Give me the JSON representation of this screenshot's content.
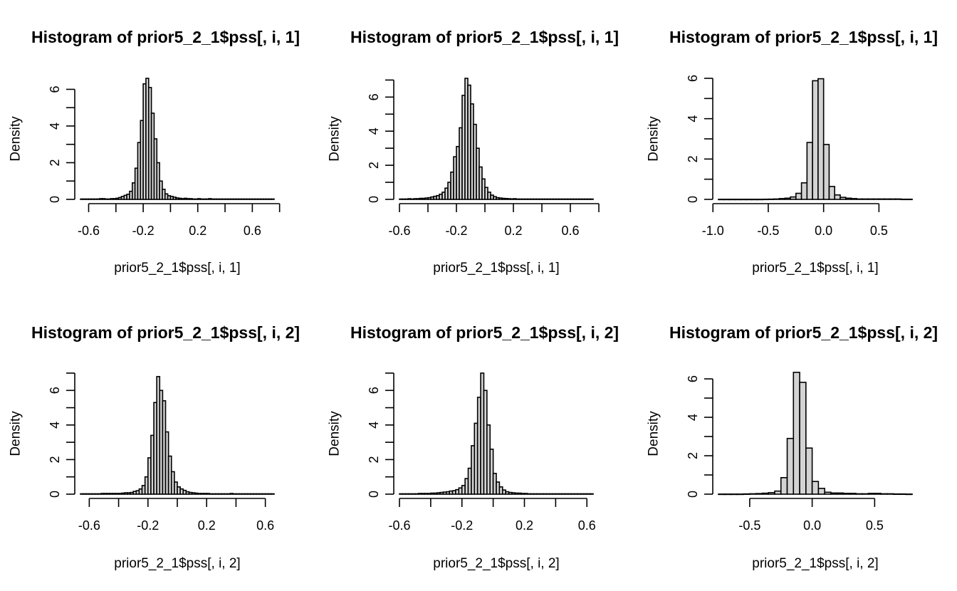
{
  "chart_data": [
    {
      "type": "bar",
      "title": "Histogram of prior5_2_1$pss[, i, 1]",
      "xlabel": "prior5_2_1$pss[, i, 1]",
      "ylabel": "Density",
      "xlim": [
        -0.66,
        0.76
      ],
      "ylim": [
        0,
        6.6
      ],
      "xticks": [
        -0.6,
        -0.4,
        -0.2,
        0.0,
        0.2,
        0.4,
        0.6,
        0.8
      ],
      "xtick_labels": [
        "-0.6",
        "",
        "-0.2",
        "",
        "0.2",
        "",
        "0.6",
        ""
      ],
      "yticks": [
        0,
        1,
        2,
        3,
        4,
        5,
        6
      ],
      "ytick_labels": [
        "0",
        "",
        "2",
        "",
        "4",
        "",
        "6"
      ],
      "bin_width": 0.02,
      "bin_start": -0.66,
      "values": [
        0.02,
        0.02,
        0.02,
        0.02,
        0.02,
        0.02,
        0.02,
        0.04,
        0.04,
        0.02,
        0.02,
        0.04,
        0.04,
        0.06,
        0.1,
        0.16,
        0.22,
        0.28,
        0.44,
        0.9,
        1.7,
        3.1,
        4.3,
        6.3,
        6.6,
        6.1,
        4.7,
        3.3,
        2.0,
        1.0,
        0.55,
        0.3,
        0.2,
        0.16,
        0.12,
        0.08,
        0.06,
        0.04,
        0.06,
        0.04,
        0.04,
        0.02,
        0.02,
        0.04,
        0.02,
        0.02,
        0.02,
        0.04,
        0.02,
        0.02,
        0.02,
        0.02,
        0.02,
        0.02,
        0.02,
        0.02,
        0.02,
        0.02,
        0.02,
        0.02,
        0.02,
        0.02,
        0.02,
        0.02,
        0.02,
        0.02,
        0.02,
        0.02,
        0.02,
        0.02,
        0.02
      ]
    },
    {
      "type": "bar",
      "title": "Histogram of prior5_2_1$pss[, i, 1]",
      "xlabel": "prior5_2_1$pss[, i, 1]",
      "ylabel": "Density",
      "xlim": [
        -0.6,
        0.76
      ],
      "ylim": [
        0,
        7.1
      ],
      "xticks": [
        -0.6,
        -0.4,
        -0.2,
        0.0,
        0.2,
        0.4,
        0.6,
        0.8
      ],
      "xtick_labels": [
        "-0.6",
        "",
        "-0.2",
        "",
        "0.2",
        "",
        "0.6",
        ""
      ],
      "yticks": [
        0,
        1,
        2,
        3,
        4,
        5,
        6,
        7
      ],
      "ytick_labels": [
        "0",
        "",
        "2",
        "",
        "4",
        "",
        "6",
        ""
      ],
      "bin_width": 0.02,
      "bin_start": -0.6,
      "values": [
        0.02,
        0.02,
        0.02,
        0.04,
        0.02,
        0.04,
        0.04,
        0.06,
        0.06,
        0.08,
        0.1,
        0.14,
        0.18,
        0.22,
        0.3,
        0.42,
        0.66,
        1.0,
        1.6,
        2.5,
        3.1,
        4.2,
        6.1,
        7.1,
        6.7,
        5.6,
        4.4,
        3.0,
        1.9,
        1.2,
        0.7,
        0.42,
        0.25,
        0.16,
        0.1,
        0.08,
        0.06,
        0.05,
        0.04,
        0.03,
        0.04,
        0.02,
        0.02,
        0.02,
        0.02,
        0.02,
        0.02,
        0.02,
        0.02,
        0.02,
        0.02,
        0.02,
        0.02,
        0.02,
        0.02,
        0.02,
        0.02,
        0.02,
        0.02,
        0.02,
        0.02,
        0.02,
        0.02,
        0.02,
        0.02,
        0.02,
        0.02,
        0.02
      ]
    },
    {
      "type": "bar",
      "title": "Histogram of prior5_2_1$pss[, i, 1]",
      "xlabel": "prior5_2_1$pss[, i, 1]",
      "ylabel": "Density",
      "xlim": [
        -0.95,
        0.8
      ],
      "ylim": [
        0,
        6.0
      ],
      "xticks": [
        -1.0,
        -0.5,
        0.0,
        0.5
      ],
      "xtick_labels": [
        "-1.0",
        "-0.5",
        "0.0",
        "0.5"
      ],
      "yticks": [
        0,
        1,
        2,
        3,
        4,
        5,
        6
      ],
      "ytick_labels": [
        "0",
        "",
        "2",
        "",
        "4",
        "",
        "6"
      ],
      "bin_width": 0.05,
      "bin_start": -0.95,
      "values": [
        0.004,
        0.004,
        0.004,
        0.004,
        0.004,
        0.004,
        0.004,
        0.004,
        0.008,
        0.012,
        0.02,
        0.04,
        0.06,
        0.12,
        0.3,
        0.82,
        2.82,
        5.88,
        5.98,
        2.72,
        0.64,
        0.22,
        0.1,
        0.06,
        0.04,
        0.02,
        0.02,
        0.02,
        0.02,
        0.02,
        0.02,
        0.02,
        0.02,
        0.008,
        0.008
      ]
    },
    {
      "type": "bar",
      "title": "Histogram of prior5_2_1$pss[, i, 2]",
      "xlabel": "prior5_2_1$pss[, i, 2]",
      "ylabel": "Density",
      "xlim": [
        -0.66,
        0.66
      ],
      "ylim": [
        0,
        7.0
      ],
      "xticks": [
        -0.6,
        -0.4,
        -0.2,
        0.0,
        0.2,
        0.4,
        0.6
      ],
      "xtick_labels": [
        "-0.6",
        "",
        "-0.2",
        "",
        "0.2",
        "",
        "0.6"
      ],
      "yticks": [
        0,
        1,
        2,
        3,
        4,
        5,
        6,
        7
      ],
      "ytick_labels": [
        "0",
        "",
        "2",
        "",
        "4",
        "",
        "6",
        ""
      ],
      "bin_width": 0.02,
      "bin_start": -0.66,
      "values": [
        0.02,
        0.02,
        0.02,
        0.02,
        0.02,
        0.02,
        0.02,
        0.04,
        0.04,
        0.04,
        0.04,
        0.04,
        0.04,
        0.04,
        0.06,
        0.08,
        0.08,
        0.1,
        0.16,
        0.2,
        0.3,
        0.5,
        1.0,
        2.1,
        3.4,
        5.3,
        6.8,
        6.0,
        5.4,
        3.6,
        2.2,
        1.3,
        0.7,
        0.42,
        0.3,
        0.22,
        0.14,
        0.1,
        0.08,
        0.06,
        0.04,
        0.04,
        0.04,
        0.04,
        0.02,
        0.02,
        0.02,
        0.02,
        0.02,
        0.02,
        0.02,
        0.04,
        0.02,
        0.02,
        0.02,
        0.02,
        0.02,
        0.02,
        0.02,
        0.02,
        0.02,
        0.02,
        0.02,
        0.02,
        0.02,
        0.02
      ]
    },
    {
      "type": "bar",
      "title": "Histogram of prior5_2_1$pss[, i, 2]",
      "xlabel": "prior5_2_1$pss[, i, 2]",
      "ylabel": "Density",
      "xlim": [
        -0.6,
        0.64
      ],
      "ylim": [
        0,
        7.0
      ],
      "xticks": [
        -0.6,
        -0.4,
        -0.2,
        0.0,
        0.2,
        0.4,
        0.6
      ],
      "xtick_labels": [
        "-0.6",
        "",
        "-0.2",
        "",
        "0.2",
        "",
        "0.6"
      ],
      "yticks": [
        0,
        1,
        2,
        3,
        4,
        5,
        6,
        7
      ],
      "ytick_labels": [
        "0",
        "",
        "2",
        "",
        "4",
        "",
        "6",
        ""
      ],
      "bin_width": 0.02,
      "bin_start": -0.6,
      "values": [
        0.02,
        0.02,
        0.02,
        0.02,
        0.02,
        0.02,
        0.04,
        0.04,
        0.04,
        0.04,
        0.06,
        0.06,
        0.08,
        0.1,
        0.12,
        0.14,
        0.18,
        0.2,
        0.26,
        0.36,
        0.5,
        0.9,
        1.5,
        2.8,
        4.1,
        5.6,
        7.0,
        6.0,
        4.0,
        2.6,
        1.2,
        0.7,
        0.42,
        0.24,
        0.14,
        0.1,
        0.08,
        0.06,
        0.06,
        0.04,
        0.04,
        0.02,
        0.02,
        0.02,
        0.02,
        0.02,
        0.02,
        0.02,
        0.02,
        0.02,
        0.02,
        0.02,
        0.02,
        0.02,
        0.02,
        0.02,
        0.02,
        0.02,
        0.02,
        0.02,
        0.02,
        0.02
      ]
    },
    {
      "type": "bar",
      "title": "Histogram of prior5_2_1$pss[, i, 2]",
      "xlabel": "prior5_2_1$pss[, i, 2]",
      "ylabel": "Density",
      "xlim": [
        -0.75,
        0.8
      ],
      "ylim": [
        0,
        6.3
      ],
      "xticks": [
        -0.5,
        0.0,
        0.5
      ],
      "xtick_labels": [
        "-0.5",
        "0.0",
        "0.5"
      ],
      "yticks": [
        0,
        1,
        2,
        3,
        4,
        5,
        6
      ],
      "ytick_labels": [
        "0",
        "",
        "2",
        "",
        "4",
        "",
        "6"
      ],
      "bin_width": 0.05,
      "bin_start": -0.75,
      "values": [
        0.004,
        0.004,
        0.004,
        0.004,
        0.012,
        0.02,
        0.03,
        0.05,
        0.08,
        0.16,
        0.86,
        2.9,
        6.34,
        5.82,
        2.4,
        0.66,
        0.3,
        0.1,
        0.06,
        0.06,
        0.04,
        0.04,
        0.02,
        0.02,
        0.04,
        0.04,
        0.02,
        0.02,
        0.01,
        0.01,
        0.004
      ]
    }
  ]
}
